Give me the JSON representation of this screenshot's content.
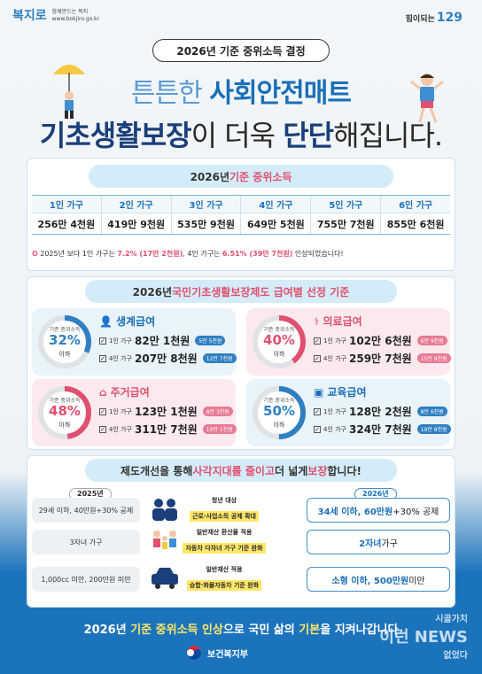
{
  "header": {
    "logo_left_mark": "복지로",
    "logo_left_tagline": "함께만드는 복지",
    "logo_left_url": "www.bokjiro.go.kr",
    "logo_right_small": "힘이되는",
    "logo_right_number": "129",
    "pill_title": "2026년 기준 중위소득 결정",
    "headline1_a": "튼튼한 ",
    "headline1_b": "사회안전매트",
    "headline2_a": "기초생활보장",
    "headline2_b": "이 더욱 ",
    "headline2_c": "단단",
    "headline2_d": "해집니다."
  },
  "income": {
    "banner_a": "2026년 ",
    "banner_b": "기준 중위소득",
    "columns": [
      "1인 가구",
      "2인 가구",
      "3인 가구",
      "4인 가구",
      "5인 가구",
      "6인 가구"
    ],
    "values": [
      "256만 4천원",
      "419만 9천원",
      "535만 9천원",
      "649만 5천원",
      "755만 7천원",
      "855만 6천원"
    ],
    "note_a": "2025년 보다 1인 가구는 ",
    "note_b": "7.2% (17만 2천원)",
    "note_c": ", 4인 가구는 ",
    "note_d": "6.51% (39만 7천원)",
    "note_e": " 인상되었습니다!"
  },
  "benefits": {
    "banner_a": "2026년 ",
    "banner_b": "국민기초생활보장제도 급여별 선정 기준",
    "gauge_label": "기준 중위소득",
    "gauge_under": "이하",
    "items": [
      {
        "title": "생계급여",
        "pct": "32%",
        "pct_value": 32,
        "color": "blue",
        "row1_label": "1인 가구",
        "row1_amt": "82만 1천원",
        "row1_badge": "5만 5천원",
        "row2_label": "4인 가구",
        "row2_amt": "207만 8천원",
        "row2_badge": "12만 7천원"
      },
      {
        "title": "의료급여",
        "pct": "40%",
        "pct_value": 40,
        "color": "pink",
        "row1_label": "1인 가구",
        "row1_amt": "102만 6천원",
        "row1_badge": "6만 9천원",
        "row2_label": "4인 가구",
        "row2_amt": "259만 7천원",
        "row2_badge": "15만 9천원"
      },
      {
        "title": "주거급여",
        "pct": "48%",
        "pct_value": 48,
        "color": "pink",
        "row1_label": "1인 가구",
        "row1_amt": "123만 1천원",
        "row1_badge": "8만 3천원",
        "row2_label": "4인 가구",
        "row2_amt": "311만 7천원",
        "row2_badge": "19만 1천원"
      },
      {
        "title": "교육급여",
        "pct": "50%",
        "pct_value": 50,
        "color": "blue",
        "row1_label": "1인 가구",
        "row1_amt": "128만 2천원",
        "row1_badge": "8만 6천원",
        "row2_label": "4인 가구",
        "row2_amt": "324만 7천원",
        "row2_badge": "19만 8천원"
      }
    ]
  },
  "reform": {
    "banner_a": "제도개선을 통해 ",
    "banner_b": "사각지대를 줄이고",
    "banner_c": " 더 넓게 ",
    "banner_d": "보장",
    "banner_e": "합니다!",
    "year_old": "2025년",
    "year_new": "2026년",
    "rows": [
      {
        "old": "29세 이하, 40만원+30% 공제",
        "cap": "청년 대상",
        "yel": "근로·사업소득 공제 확대",
        "new_bold": "34세 이하, 60만원",
        "new_rest": "+30% 공제"
      },
      {
        "old": "3자녀 가구",
        "cap": "일반재산 환산율 적용",
        "yel": "자동차 다자녀 가구 기준 완화",
        "new_bold": "2자녀",
        "new_rest": " 가구"
      },
      {
        "old": "1,000cc 미만, 200만원 미만",
        "cap": "일반재산 적용",
        "yel": "승합·화물자동차 기준 완화",
        "new_bold": "소형 이하, 500만원",
        "new_rest": " 미만"
      }
    ]
  },
  "footer": {
    "message_a": "2026년 ",
    "message_b": "기준 중위소득 인상",
    "message_c": "으로 국민 삶의 ",
    "message_d": "기본",
    "message_e": "을 지켜나갑니다",
    "ministry": "보건복지부",
    "watermark_1": "시골가치",
    "watermark_2": "이런 NEWS",
    "watermark_3": "없었다"
  },
  "colors": {
    "blue": "#2f7fc1",
    "pink": "#e0506f",
    "navy": "#1a3f7a",
    "footer_blue": "#1b73bc"
  }
}
